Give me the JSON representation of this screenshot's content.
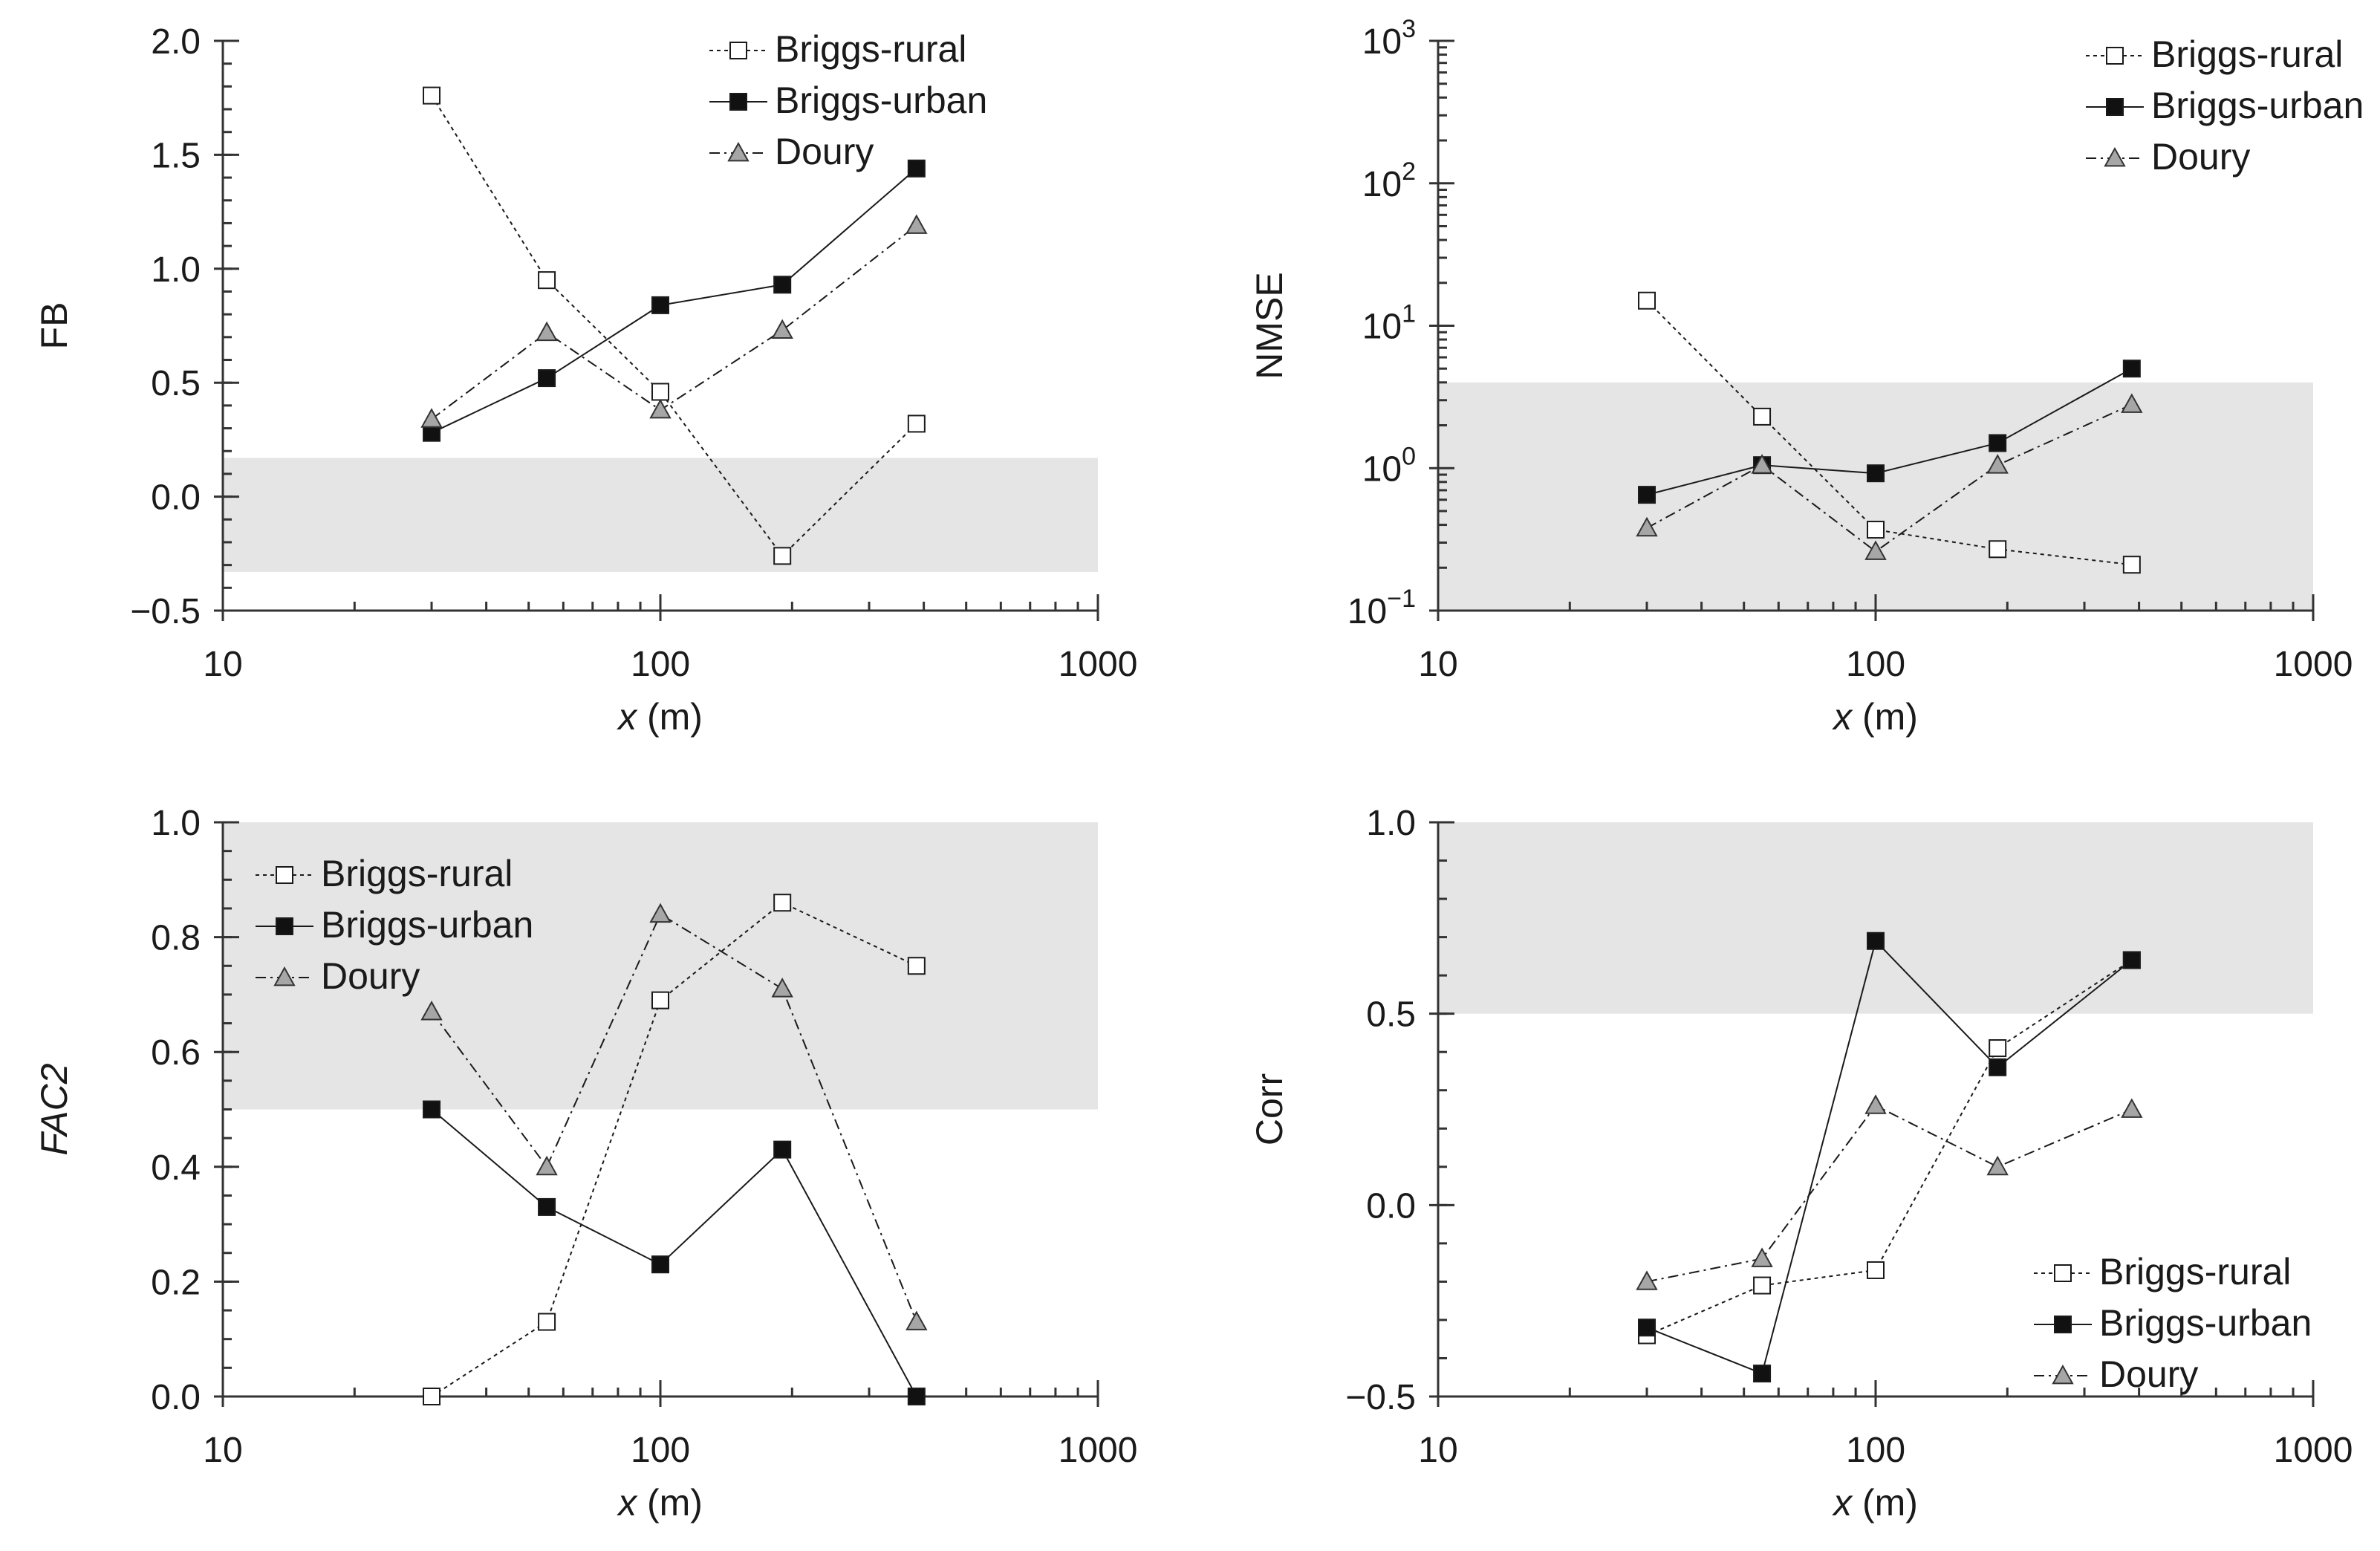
{
  "figure": {
    "description_panels": [
      "FB",
      "NMSE",
      "FAC2",
      "Corr"
    ]
  },
  "colors": {
    "band": "#e5e5e5",
    "axis": "#333333",
    "briggs_rural_fill": "#ffffff",
    "briggs_urban_fill": "#111111",
    "doury_fill": "#a6a6a6",
    "line": "#1a1a1a"
  },
  "series_names": [
    "Briggs-rural",
    "Briggs-urban",
    "Doury"
  ],
  "chart_data": [
    {
      "type": "line",
      "id": "fb",
      "ylabel": "FB",
      "ylabel_italic": false,
      "xlabel_var": "x",
      "xlabel_unit": " (m)",
      "xscale": "log",
      "yscale": "linear",
      "xlim": [
        10,
        1000
      ],
      "ylim": [
        -0.5,
        2.0
      ],
      "x_ticks": [
        10,
        100,
        1000
      ],
      "x_tick_labels": [
        "10",
        "100",
        "1000"
      ],
      "y_ticks": [
        -0.5,
        0.0,
        0.5,
        1.0,
        1.5,
        2.0
      ],
      "y_tick_labels": [
        "−0.5",
        "0.0",
        "0.5",
        "1.0",
        "1.5",
        "2.0"
      ],
      "y_minor_step": 0.1,
      "band": [
        -0.33,
        0.17
      ],
      "legend_position": "top-center",
      "x": [
        30,
        55,
        100,
        190,
        385
      ],
      "series": [
        {
          "name": "Briggs-rural",
          "marker": "square-open",
          "dash": "dotted",
          "values": [
            1.76,
            0.95,
            0.46,
            -0.26,
            0.32
          ]
        },
        {
          "name": "Briggs-urban",
          "marker": "square-filled",
          "dash": "solid",
          "values": [
            0.28,
            0.52,
            0.84,
            0.93,
            1.44
          ]
        },
        {
          "name": "Doury",
          "marker": "triangle",
          "dash": "dashdot",
          "values": [
            0.34,
            0.72,
            0.38,
            0.73,
            1.19
          ]
        }
      ]
    },
    {
      "type": "line",
      "id": "nmse",
      "ylabel": "NMSE",
      "ylabel_italic": false,
      "xlabel_var": "x",
      "xlabel_unit": " (m)",
      "xscale": "log",
      "yscale": "log",
      "xlim": [
        10,
        1000
      ],
      "ylim": [
        0.1,
        1000
      ],
      "x_ticks": [
        10,
        100,
        1000
      ],
      "x_tick_labels": [
        "10",
        "100",
        "1000"
      ],
      "y_ticks": [
        0.1,
        1,
        10,
        100,
        1000
      ],
      "y_tick_labels": [
        {
          "base": "10",
          "exp": "−1"
        },
        {
          "base": "10",
          "exp": "0"
        },
        {
          "base": "10",
          "exp": "1"
        },
        {
          "base": "10",
          "exp": "2"
        },
        {
          "base": "10",
          "exp": "3"
        }
      ],
      "band": [
        0.1,
        4.0
      ],
      "legend_position": "top-right",
      "x": [
        30,
        55,
        100,
        190,
        385
      ],
      "series": [
        {
          "name": "Briggs-rural",
          "marker": "square-open",
          "dash": "dotted",
          "values": [
            15.0,
            2.3,
            0.37,
            0.27,
            0.21
          ]
        },
        {
          "name": "Briggs-urban",
          "marker": "square-filled",
          "dash": "solid",
          "values": [
            0.65,
            1.05,
            0.92,
            1.5,
            5.0
          ]
        },
        {
          "name": "Doury",
          "marker": "triangle",
          "dash": "dashdot",
          "values": [
            0.38,
            1.05,
            0.26,
            1.05,
            2.8
          ]
        }
      ]
    },
    {
      "type": "line",
      "id": "fac2",
      "ylabel": "FAC2",
      "ylabel_italic": true,
      "xlabel_var": "x",
      "xlabel_unit": " (m)",
      "xscale": "log",
      "yscale": "linear",
      "xlim": [
        10,
        1000
      ],
      "ylim": [
        0.0,
        1.0
      ],
      "x_ticks": [
        10,
        100,
        1000
      ],
      "x_tick_labels": [
        "10",
        "100",
        "1000"
      ],
      "y_ticks": [
        0.0,
        0.2,
        0.4,
        0.6,
        0.8,
        1.0
      ],
      "y_tick_labels": [
        "0.0",
        "0.2",
        "0.4",
        "0.6",
        "0.8",
        "1.0"
      ],
      "y_minor_step": 0.05,
      "band": [
        0.5,
        1.0
      ],
      "legend_position": "top-left",
      "x": [
        30,
        55,
        100,
        190,
        385
      ],
      "series": [
        {
          "name": "Briggs-rural",
          "marker": "square-open",
          "dash": "dotted",
          "values": [
            0.0,
            0.13,
            0.69,
            0.86,
            0.75
          ]
        },
        {
          "name": "Briggs-urban",
          "marker": "square-filled",
          "dash": "solid",
          "values": [
            0.5,
            0.33,
            0.23,
            0.43,
            0.0
          ]
        },
        {
          "name": "Doury",
          "marker": "triangle",
          "dash": "dashdot",
          "values": [
            0.67,
            0.4,
            0.84,
            0.71,
            0.13
          ]
        }
      ]
    },
    {
      "type": "line",
      "id": "corr",
      "ylabel": "Corr",
      "ylabel_italic": false,
      "xlabel_var": "x",
      "xlabel_unit": " (m)",
      "xscale": "log",
      "yscale": "linear",
      "xlim": [
        10,
        1000
      ],
      "ylim": [
        -0.5,
        1.0
      ],
      "x_ticks": [
        10,
        100,
        1000
      ],
      "x_tick_labels": [
        "10",
        "100",
        "1000"
      ],
      "y_ticks": [
        -0.5,
        0.0,
        0.5,
        1.0
      ],
      "y_tick_labels": [
        "−0.5",
        "0.0",
        "0.5",
        "1.0"
      ],
      "y_minor_step": 0.1,
      "band": [
        0.5,
        1.0
      ],
      "legend_position": "bottom-right",
      "x": [
        30,
        55,
        100,
        190,
        385
      ],
      "series": [
        {
          "name": "Briggs-rural",
          "marker": "square-open",
          "dash": "dotted",
          "values": [
            -0.34,
            -0.21,
            -0.17,
            0.41,
            0.64
          ]
        },
        {
          "name": "Briggs-urban",
          "marker": "square-filled",
          "dash": "solid",
          "values": [
            -0.32,
            -0.44,
            0.69,
            0.36,
            0.64
          ]
        },
        {
          "name": "Doury",
          "marker": "triangle",
          "dash": "dashdot",
          "values": [
            -0.2,
            -0.14,
            0.26,
            0.1,
            0.25
          ]
        }
      ]
    }
  ]
}
